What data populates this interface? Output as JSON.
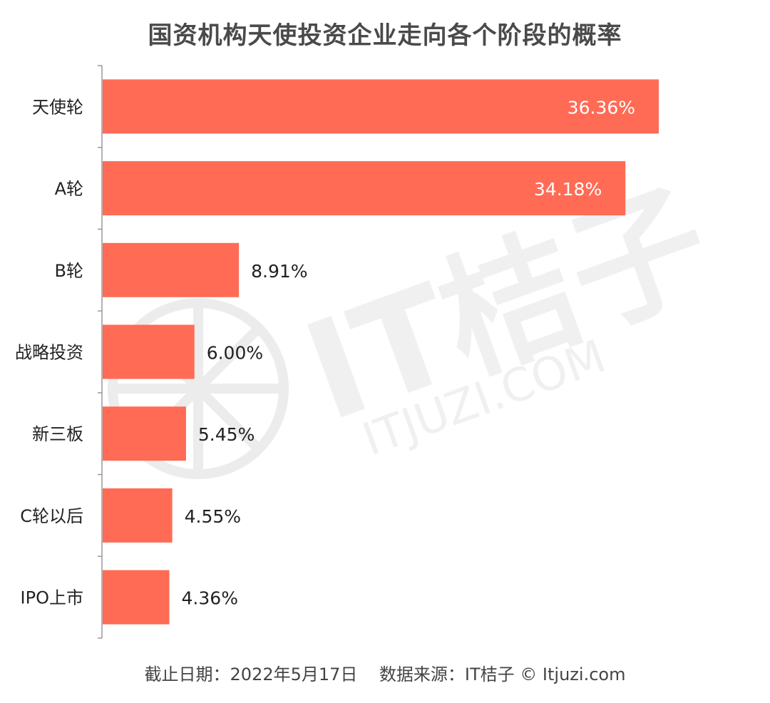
{
  "chart_data": {
    "type": "bar",
    "orientation": "horizontal",
    "title": "国资机构天使投资企业走向各个阶段的概率",
    "categories": [
      "天使轮",
      "A轮",
      "B轮",
      "战略投资",
      "新三板",
      "C轮以后",
      "IPO上市"
    ],
    "values": [
      36.36,
      34.18,
      8.91,
      6.0,
      5.45,
      4.55,
      4.36
    ],
    "data_labels": [
      "36.36%",
      "34.18%",
      "8.91%",
      "6.00%",
      "5.45%",
      "4.55%",
      "4.36%"
    ],
    "unit": "%",
    "xlim": [
      0,
      36.36
    ],
    "grid": false,
    "legend": "none",
    "bar_color": "#ff6b55"
  },
  "footer": {
    "date_text": "截止日期：2022年5月17日",
    "source_text": "数据来源：IT桔子 © Itjuzi.com"
  },
  "watermark": {
    "brand": "IT桔子",
    "url": "ITJUZI.COM"
  },
  "colors": {
    "bar": "#ff6b55",
    "title": "#4a4a4a",
    "axis": "#999999",
    "label_inside": "#ffffff",
    "label_outside": "#222222"
  }
}
